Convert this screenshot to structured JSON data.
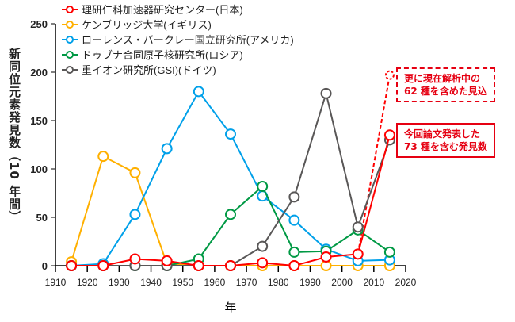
{
  "chart_data": {
    "type": "line",
    "xlabel": "年",
    "ylabel": "新同位元素発見数（10 年間）",
    "xlim": [
      1910,
      2020
    ],
    "ylim": [
      0,
      250
    ],
    "xticks": [
      1910,
      1920,
      1930,
      1940,
      1950,
      1960,
      1970,
      1980,
      1990,
      2000,
      2010,
      2020
    ],
    "yticks": [
      0,
      50,
      100,
      150,
      200,
      250
    ],
    "grid": false,
    "legend": "top-left",
    "x": [
      1915,
      1925,
      1935,
      1945,
      1955,
      1965,
      1975,
      1985,
      1995,
      2005,
      2015
    ],
    "series": [
      {
        "name": "理研仁科加速器研究センター(日本)",
        "color": "#ff0000",
        "values": [
          0,
          0,
          7,
          5,
          0,
          0,
          3,
          0,
          9,
          12,
          135
        ]
      },
      {
        "name": "ケンブリッジ大学(イギリス)",
        "color": "#ffb000",
        "values": [
          4,
          113,
          96,
          2,
          0,
          0,
          0,
          0,
          0,
          0,
          0
        ]
      },
      {
        "name": "ローレンス・バークレー国立研究所(アメリカ)",
        "color": "#00a0e9",
        "values": [
          0,
          2,
          53,
          121,
          180,
          136,
          72,
          47,
          17,
          5,
          6
        ]
      },
      {
        "name": "ドゥブナ合同原子核研究所(ロシア)",
        "color": "#009944",
        "values": [
          0,
          0,
          0,
          0,
          7,
          53,
          82,
          14,
          15,
          37,
          14
        ]
      },
      {
        "name": "重イオン研究所(GSI)(ドイツ)",
        "color": "#595757",
        "values": [
          0,
          0,
          0,
          0,
          0,
          0,
          20,
          71,
          178,
          40,
          130
        ]
      }
    ],
    "projection": {
      "color": "#ff0000",
      "from": [
        2005,
        12
      ],
      "to": [
        2015,
        197
      ]
    },
    "annotations": [
      {
        "lines": [
          "今回論文発表した",
          "73 種を含む発見数"
        ],
        "color": "#e60012"
      },
      {
        "lines": [
          "更に現在解析中の",
          "62 種を含めた見込"
        ],
        "color": "#e60012"
      }
    ]
  }
}
